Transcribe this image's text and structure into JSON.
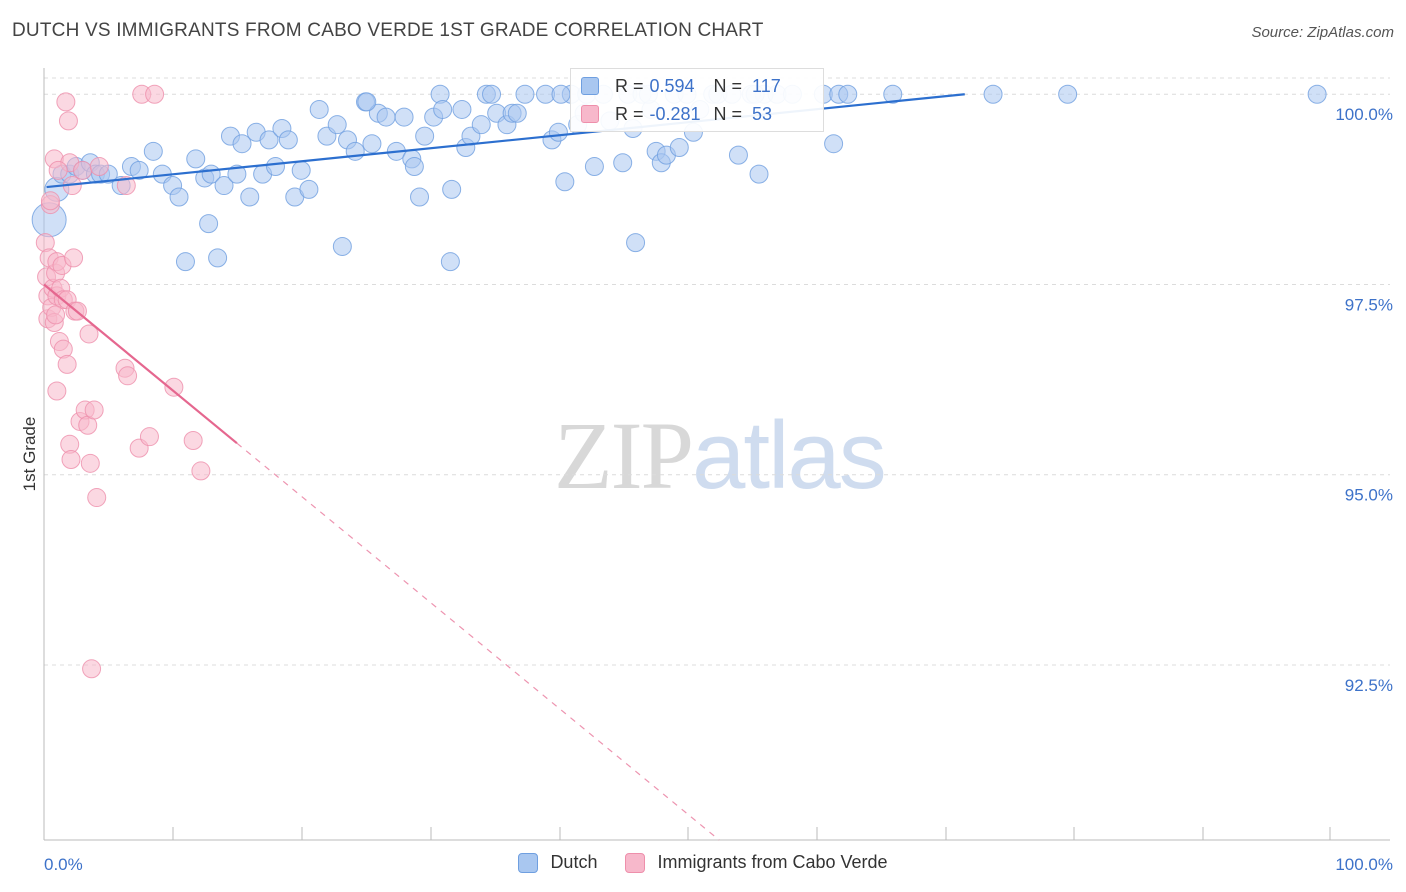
{
  "header": {
    "title": "DUTCH VS IMMIGRANTS FROM CABO VERDE 1ST GRADE CORRELATION CHART",
    "source": "Source: ZipAtlas.com"
  },
  "watermark": {
    "zip": "ZIP",
    "atlas": "atlas"
  },
  "colors": {
    "dutch_fill": "#a9c7f0",
    "dutch_stroke": "#6f9fe0",
    "dutch_line": "#2c6fcf",
    "cabo_fill": "#f7b8cb",
    "cabo_stroke": "#ee8fab",
    "cabo_line": "#e5678f",
    "grid": "#dcdcdc",
    "tick_text": "#3d72c9"
  },
  "legend_top": {
    "rows": [
      {
        "r_key": "R =",
        "r_value": "0.594",
        "n_key": "N =",
        "n_value": "117"
      },
      {
        "r_key": "R =",
        "r_value": "-0.281",
        "n_key": "N =",
        "n_value": "53"
      }
    ]
  },
  "legend_bottom": {
    "items": [
      {
        "label": "Dutch"
      },
      {
        "label": "Immigrants from Cabo Verde"
      }
    ]
  },
  "chart_data": {
    "type": "scatter",
    "title": "DUTCH VS IMMIGRANTS FROM CABO VERDE 1ST GRADE CORRELATION CHART",
    "xlabel": "",
    "ylabel": "1st Grade",
    "xlim": [
      0,
      100
    ],
    "ylim": [
      90.2,
      100.45
    ],
    "x_tick_labels": [
      "0.0%",
      "100.0%"
    ],
    "y_ticks": [
      {
        "value": 100.0,
        "label": "100.0%"
      },
      {
        "value": 97.5,
        "label": "97.5%"
      },
      {
        "value": 95.0,
        "label": "95.0%"
      },
      {
        "value": 92.5,
        "label": "92.5%"
      }
    ],
    "grid": true,
    "series": [
      {
        "name": "Dutch",
        "r": 0.594,
        "n": 117,
        "trend": {
          "x": [
            0.2,
            71.6
          ],
          "y": [
            98.78,
            100.0
          ],
          "solid_to": 71.6
        },
        "points": [
          [
            0.4,
            98.35,
            3
          ],
          [
            1.0,
            98.75,
            2
          ],
          [
            1.4,
            98.95,
            1
          ],
          [
            2.0,
            98.95,
            1
          ],
          [
            2.5,
            99.05,
            1
          ],
          [
            3.0,
            99.0,
            1
          ],
          [
            3.6,
            99.1,
            1
          ],
          [
            4.0,
            98.95,
            1
          ],
          [
            4.4,
            98.95,
            1
          ],
          [
            5.0,
            98.95,
            1
          ],
          [
            6.0,
            98.8,
            1
          ],
          [
            6.8,
            99.05,
            1
          ],
          [
            7.4,
            99.0,
            1
          ],
          [
            8.5,
            99.25,
            1
          ],
          [
            9.2,
            98.95,
            1
          ],
          [
            10.0,
            98.8,
            1
          ],
          [
            10.5,
            98.65,
            1
          ],
          [
            11.0,
            97.8,
            1
          ],
          [
            11.8,
            99.15,
            1
          ],
          [
            12.5,
            98.9,
            1
          ],
          [
            12.8,
            98.3,
            1
          ],
          [
            13.0,
            98.95,
            1
          ],
          [
            13.5,
            97.85,
            1
          ],
          [
            14.0,
            98.8,
            1
          ],
          [
            14.5,
            99.45,
            1
          ],
          [
            15.0,
            98.95,
            1
          ],
          [
            15.4,
            99.35,
            1
          ],
          [
            16.0,
            98.65,
            1
          ],
          [
            16.5,
            99.5,
            1
          ],
          [
            17.0,
            98.95,
            1
          ],
          [
            17.5,
            99.4,
            1
          ],
          [
            18.0,
            99.05,
            1
          ],
          [
            18.5,
            99.55,
            1
          ],
          [
            19.0,
            99.4,
            1
          ],
          [
            19.5,
            98.65,
            1
          ],
          [
            20.0,
            99.0,
            1
          ],
          [
            20.6,
            98.75,
            1
          ],
          [
            21.4,
            99.8,
            1
          ],
          [
            22.0,
            99.45,
            1
          ],
          [
            22.8,
            99.6,
            1
          ],
          [
            23.2,
            98.0,
            1
          ],
          [
            23.6,
            99.4,
            1
          ],
          [
            24.2,
            99.25,
            1
          ],
          [
            25.0,
            99.9,
            1
          ],
          [
            25.5,
            99.35,
            1
          ],
          [
            26.0,
            99.75,
            1
          ],
          [
            26.6,
            99.7,
            1
          ],
          [
            27.4,
            99.25,
            1
          ],
          [
            28.0,
            99.7,
            1
          ],
          [
            28.6,
            99.15,
            1
          ],
          [
            28.8,
            99.05,
            1
          ],
          [
            29.2,
            98.65,
            1
          ],
          [
            29.6,
            99.45,
            1
          ],
          [
            30.3,
            99.7,
            1
          ],
          [
            30.8,
            100.0,
            1
          ],
          [
            31.0,
            99.8,
            1
          ],
          [
            31.6,
            97.8,
            1
          ],
          [
            31.7,
            98.75,
            1
          ],
          [
            32.5,
            99.8,
            1
          ],
          [
            32.8,
            99.3,
            1
          ],
          [
            33.2,
            99.45,
            1
          ],
          [
            34.0,
            99.6,
            1
          ],
          [
            34.4,
            100.0,
            1
          ],
          [
            34.8,
            100.0,
            1
          ],
          [
            35.2,
            99.75,
            1
          ],
          [
            36.0,
            99.6,
            1
          ],
          [
            36.4,
            99.75,
            1
          ],
          [
            36.8,
            99.75,
            1
          ],
          [
            37.4,
            100.0,
            1
          ],
          [
            39.0,
            100.0,
            1
          ],
          [
            39.5,
            99.4,
            1
          ],
          [
            40.0,
            99.5,
            1
          ],
          [
            40.5,
            98.85,
            1
          ],
          [
            41.0,
            100.0,
            1
          ],
          [
            41.5,
            99.6,
            1
          ],
          [
            42.0,
            99.75,
            1
          ],
          [
            42.2,
            100.0,
            1
          ],
          [
            42.8,
            99.05,
            1
          ],
          [
            43.5,
            100.0,
            1
          ],
          [
            44.0,
            99.65,
            1
          ],
          [
            45.0,
            99.1,
            1
          ],
          [
            45.4,
            100.0,
            1
          ],
          [
            45.8,
            99.55,
            1
          ],
          [
            46.0,
            98.05,
            1
          ],
          [
            46.5,
            100.0,
            1
          ],
          [
            47.2,
            99.8,
            1
          ],
          [
            47.6,
            99.25,
            1
          ],
          [
            48.0,
            99.1,
            1
          ],
          [
            48.4,
            99.2,
            1
          ],
          [
            49.0,
            100.0,
            1
          ],
          [
            49.4,
            99.3,
            1
          ],
          [
            50.0,
            100.0,
            1
          ],
          [
            50.5,
            99.5,
            1
          ],
          [
            51.0,
            99.8,
            1
          ],
          [
            52.0,
            100.0,
            1
          ],
          [
            52.4,
            100.0,
            1
          ],
          [
            53.5,
            100.0,
            1
          ],
          [
            54.0,
            99.2,
            1
          ],
          [
            55.0,
            100.0,
            1
          ],
          [
            55.6,
            98.95,
            1
          ],
          [
            56.0,
            100.0,
            1
          ],
          [
            57.0,
            100.0,
            1
          ],
          [
            58.2,
            100.0,
            1
          ],
          [
            60.6,
            100.0,
            1
          ],
          [
            61.4,
            99.35,
            1
          ],
          [
            61.8,
            100.0,
            1
          ],
          [
            62.5,
            100.0,
            1
          ],
          [
            66.0,
            100.0,
            1
          ],
          [
            73.8,
            100.0,
            1
          ],
          [
            79.6,
            100.0,
            1
          ],
          [
            99.0,
            100.0,
            1
          ],
          [
            25.1,
            99.9,
            1
          ],
          [
            40.2,
            100.0,
            1
          ],
          [
            55.3,
            100.0,
            1
          ],
          [
            47.0,
            100.0,
            1
          ]
        ]
      },
      {
        "name": "Immigrants from Cabo Verde",
        "r": -0.281,
        "n": 53,
        "trend": {
          "x": [
            0.0,
            52.5
          ],
          "y": [
            97.5,
            90.2
          ],
          "solid_to": 15.0
        },
        "points": [
          [
            0.1,
            98.05,
            1
          ],
          [
            0.2,
            97.6,
            1
          ],
          [
            0.3,
            97.35,
            1
          ],
          [
            0.3,
            97.05,
            1
          ],
          [
            0.4,
            97.85,
            1
          ],
          [
            0.5,
            98.55,
            1
          ],
          [
            0.6,
            97.2,
            1
          ],
          [
            0.7,
            97.45,
            1
          ],
          [
            0.8,
            99.15,
            1
          ],
          [
            0.8,
            97.0,
            1
          ],
          [
            0.9,
            97.65,
            1
          ],
          [
            1.0,
            97.8,
            1
          ],
          [
            1.0,
            97.35,
            1
          ],
          [
            1.0,
            96.1,
            1
          ],
          [
            1.2,
            96.75,
            1
          ],
          [
            1.3,
            97.45,
            1
          ],
          [
            1.4,
            97.75,
            1
          ],
          [
            1.5,
            97.3,
            1
          ],
          [
            1.5,
            96.65,
            1
          ],
          [
            1.7,
            99.9,
            1
          ],
          [
            1.8,
            97.3,
            1
          ],
          [
            1.8,
            96.45,
            1
          ],
          [
            1.9,
            99.65,
            1
          ],
          [
            2.0,
            99.1,
            1
          ],
          [
            2.0,
            95.4,
            1
          ],
          [
            2.1,
            95.2,
            1
          ],
          [
            2.2,
            98.8,
            1
          ],
          [
            2.3,
            97.85,
            1
          ],
          [
            2.4,
            97.15,
            1
          ],
          [
            2.6,
            97.15,
            1
          ],
          [
            2.8,
            95.7,
            1
          ],
          [
            3.0,
            99.0,
            1
          ],
          [
            3.2,
            95.85,
            1
          ],
          [
            3.4,
            95.65,
            1
          ],
          [
            3.5,
            96.85,
            1
          ],
          [
            3.6,
            95.15,
            1
          ],
          [
            3.7,
            92.45,
            1
          ],
          [
            3.9,
            95.85,
            1
          ],
          [
            4.1,
            94.7,
            1
          ],
          [
            4.3,
            99.05,
            1
          ],
          [
            6.3,
            96.4,
            1
          ],
          [
            6.4,
            98.8,
            1
          ],
          [
            6.5,
            96.3,
            1
          ],
          [
            7.4,
            95.35,
            1
          ],
          [
            7.6,
            100.0,
            1
          ],
          [
            8.2,
            95.5,
            1
          ],
          [
            8.6,
            100.0,
            1
          ],
          [
            10.1,
            96.15,
            1
          ],
          [
            11.6,
            95.45,
            1
          ],
          [
            12.2,
            95.05,
            1
          ],
          [
            0.5,
            98.6,
            1
          ],
          [
            0.9,
            97.1,
            1
          ],
          [
            1.1,
            99.0,
            1
          ]
        ]
      }
    ]
  }
}
